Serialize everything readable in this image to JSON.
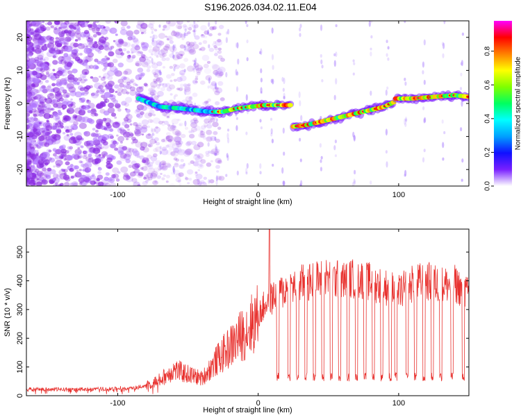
{
  "figure_title": "S196.2026.034.02.11.E04",
  "colors": {
    "snr_line": "#e8322f",
    "blob_low": "#8a2be2",
    "axis": "#000000"
  },
  "chart_data": [
    {
      "type": "heatmap",
      "title": "S196.2026.034.02.11.E04",
      "xlabel": "Height of straight line (km)",
      "ylabel": "Frequency (Hz)",
      "xlim": [
        -165,
        150
      ],
      "ylim": [
        -25,
        25
      ],
      "xticks": [
        -100,
        0,
        100
      ],
      "yticks": [
        -20,
        -10,
        0,
        10,
        20
      ],
      "colorbar": {
        "label": "Normalized spectral amplitude",
        "range": [
          0,
          0.98
        ],
        "ticks": [
          0,
          0.2,
          0.4,
          0.6,
          0.8
        ]
      },
      "ridge_segments": [
        {
          "x": [
            -85,
            -70,
            -55,
            -45,
            -35,
            -25,
            -15,
            -5,
            5,
            15,
            24
          ],
          "y": [
            1.5,
            -1,
            -1.5,
            -2,
            -2.5,
            -2.5,
            -1.5,
            -1,
            -0.5,
            -0.5,
            -0.5
          ]
        },
        {
          "x": [
            25,
            35,
            50,
            65,
            80,
            90,
            97
          ],
          "y": [
            -7,
            -6.5,
            -5,
            -3.5,
            -2,
            -1,
            0.5
          ]
        },
        {
          "x": [
            98,
            110,
            125,
            140,
            150
          ],
          "y": [
            1.5,
            1.5,
            2,
            2.5,
            2
          ]
        }
      ]
    },
    {
      "type": "line",
      "xlabel": "Height of straight line (km)",
      "ylabel": "SNR (10 * v/v)",
      "xlim": [
        -165,
        150
      ],
      "ylim": [
        0,
        580
      ],
      "xticks": [
        -100,
        0,
        100
      ],
      "yticks": [
        0,
        100,
        200,
        300,
        400,
        500
      ],
      "series": [
        {
          "name": "SNR",
          "envelope_x": [
            -165,
            -120,
            -90,
            -80,
            -70,
            -60,
            -50,
            -40,
            -30,
            -20,
            -10,
            0,
            5,
            10,
            20,
            30,
            40,
            50,
            60,
            70,
            80,
            90,
            100,
            110,
            120,
            130,
            140,
            150
          ],
          "envelope_y": [
            22,
            22,
            25,
            35,
            55,
            90,
            75,
            60,
            120,
            170,
            220,
            275,
            320,
            340,
            370,
            390,
            400,
            410,
            400,
            410,
            395,
            380,
            360,
            390,
            400,
            385,
            390,
            350
          ],
          "dropout_x": [
            14,
            22,
            28,
            34,
            40,
            46,
            52,
            58,
            64,
            70,
            76,
            82,
            88,
            94,
            98,
            106,
            112,
            118,
            124,
            130,
            138,
            146
          ],
          "dropout_y": 50,
          "spike": {
            "x": 8,
            "y": 580
          }
        }
      ]
    }
  ]
}
